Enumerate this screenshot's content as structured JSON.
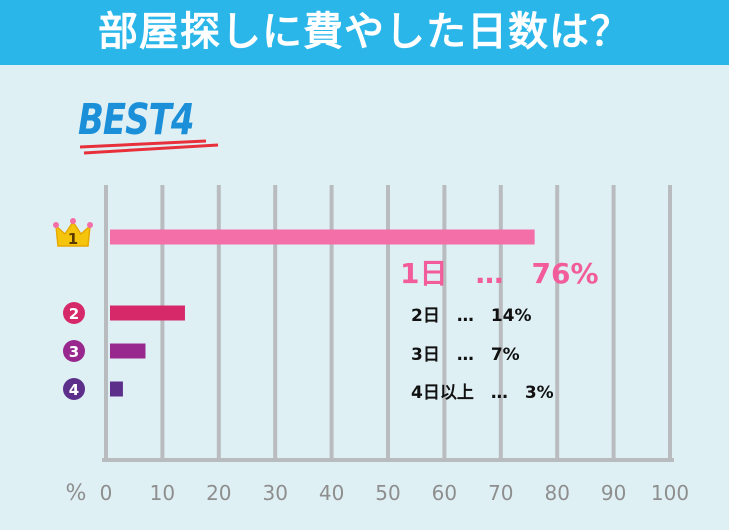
{
  "header": {
    "title": "部屋探しに費やした日数は？"
  },
  "badge": {
    "text": "BEST4"
  },
  "colors": {
    "header_bg": "#2bb6ea",
    "background": "#dff0f5",
    "rank1": "#f46ea8",
    "rank2": "#d6296a",
    "rank3": "#98288e",
    "rank4": "#5c2f8a",
    "crown": "#f5c40c",
    "axis": "#b9bcbf",
    "tick_text": "#8e8e8e"
  },
  "chart_data": {
    "type": "bar",
    "orientation": "horizontal",
    "categories": [
      "1日",
      "2日",
      "3日",
      "4日以上"
    ],
    "values": [
      76,
      14,
      7,
      3
    ],
    "ranks": [
      "1",
      "2",
      "3",
      "4"
    ],
    "labels": [
      "1日　…　76%",
      "2日　…　14%",
      "3日　…　7%",
      "4日以上　…　3%"
    ],
    "xaxis_unit": "%",
    "xlim": [
      0,
      100
    ],
    "xticks": [
      0,
      10,
      20,
      30,
      40,
      50,
      60,
      70,
      80,
      90,
      100
    ],
    "grid": true
  }
}
